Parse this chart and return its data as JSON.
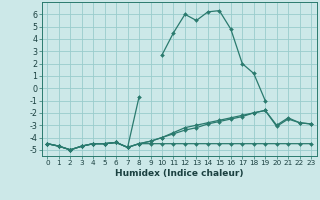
{
  "xlabel": "Humidex (Indice chaleur)",
  "bg_color": "#cce8e8",
  "grid_color": "#99cccc",
  "line_color": "#2a7a6e",
  "xlim": [
    -0.5,
    23.5
  ],
  "ylim": [
    -5.5,
    7.0
  ],
  "yticks": [
    -5,
    -4,
    -3,
    -2,
    -1,
    0,
    1,
    2,
    3,
    4,
    5,
    6
  ],
  "xticks": [
    0,
    1,
    2,
    3,
    4,
    5,
    6,
    7,
    8,
    9,
    10,
    11,
    12,
    13,
    14,
    15,
    16,
    17,
    18,
    19,
    20,
    21,
    22,
    23
  ],
  "series": [
    [
      -4.5,
      -4.7,
      -5.0,
      -4.7,
      -4.5,
      -4.5,
      -4.4,
      -4.8,
      -4.5,
      -4.5,
      -4.5,
      -4.5,
      -4.5,
      -4.5,
      -4.5,
      -4.5,
      -4.5,
      -4.5,
      -4.5,
      -4.5,
      -4.5,
      -4.5,
      -4.5,
      -4.5
    ],
    [
      -4.5,
      -4.7,
      -5.0,
      -4.7,
      -4.5,
      -4.5,
      -4.4,
      -4.8,
      -4.5,
      -4.3,
      -4.0,
      -3.7,
      -3.4,
      -3.2,
      -2.9,
      -2.7,
      -2.5,
      -2.3,
      -2.0,
      -1.8,
      -3.1,
      -2.5,
      -2.8,
      -2.9
    ],
    [
      -4.5,
      -4.7,
      -5.0,
      -4.7,
      -4.5,
      -4.5,
      -4.4,
      -4.8,
      -4.5,
      -4.3,
      -4.0,
      -3.6,
      -3.2,
      -3.0,
      -2.8,
      -2.6,
      -2.4,
      -2.2,
      -2.0,
      -1.8,
      -3.0,
      -2.4,
      -2.8,
      -2.9
    ],
    [
      -4.5,
      -4.7,
      -5.0,
      -4.7,
      -4.5,
      -4.5,
      -4.4,
      -4.8,
      -0.7,
      null,
      2.7,
      4.5,
      6.0,
      5.5,
      6.2,
      6.3,
      4.8,
      2.0,
      1.2,
      -1.0,
      null,
      null,
      null,
      null
    ]
  ]
}
